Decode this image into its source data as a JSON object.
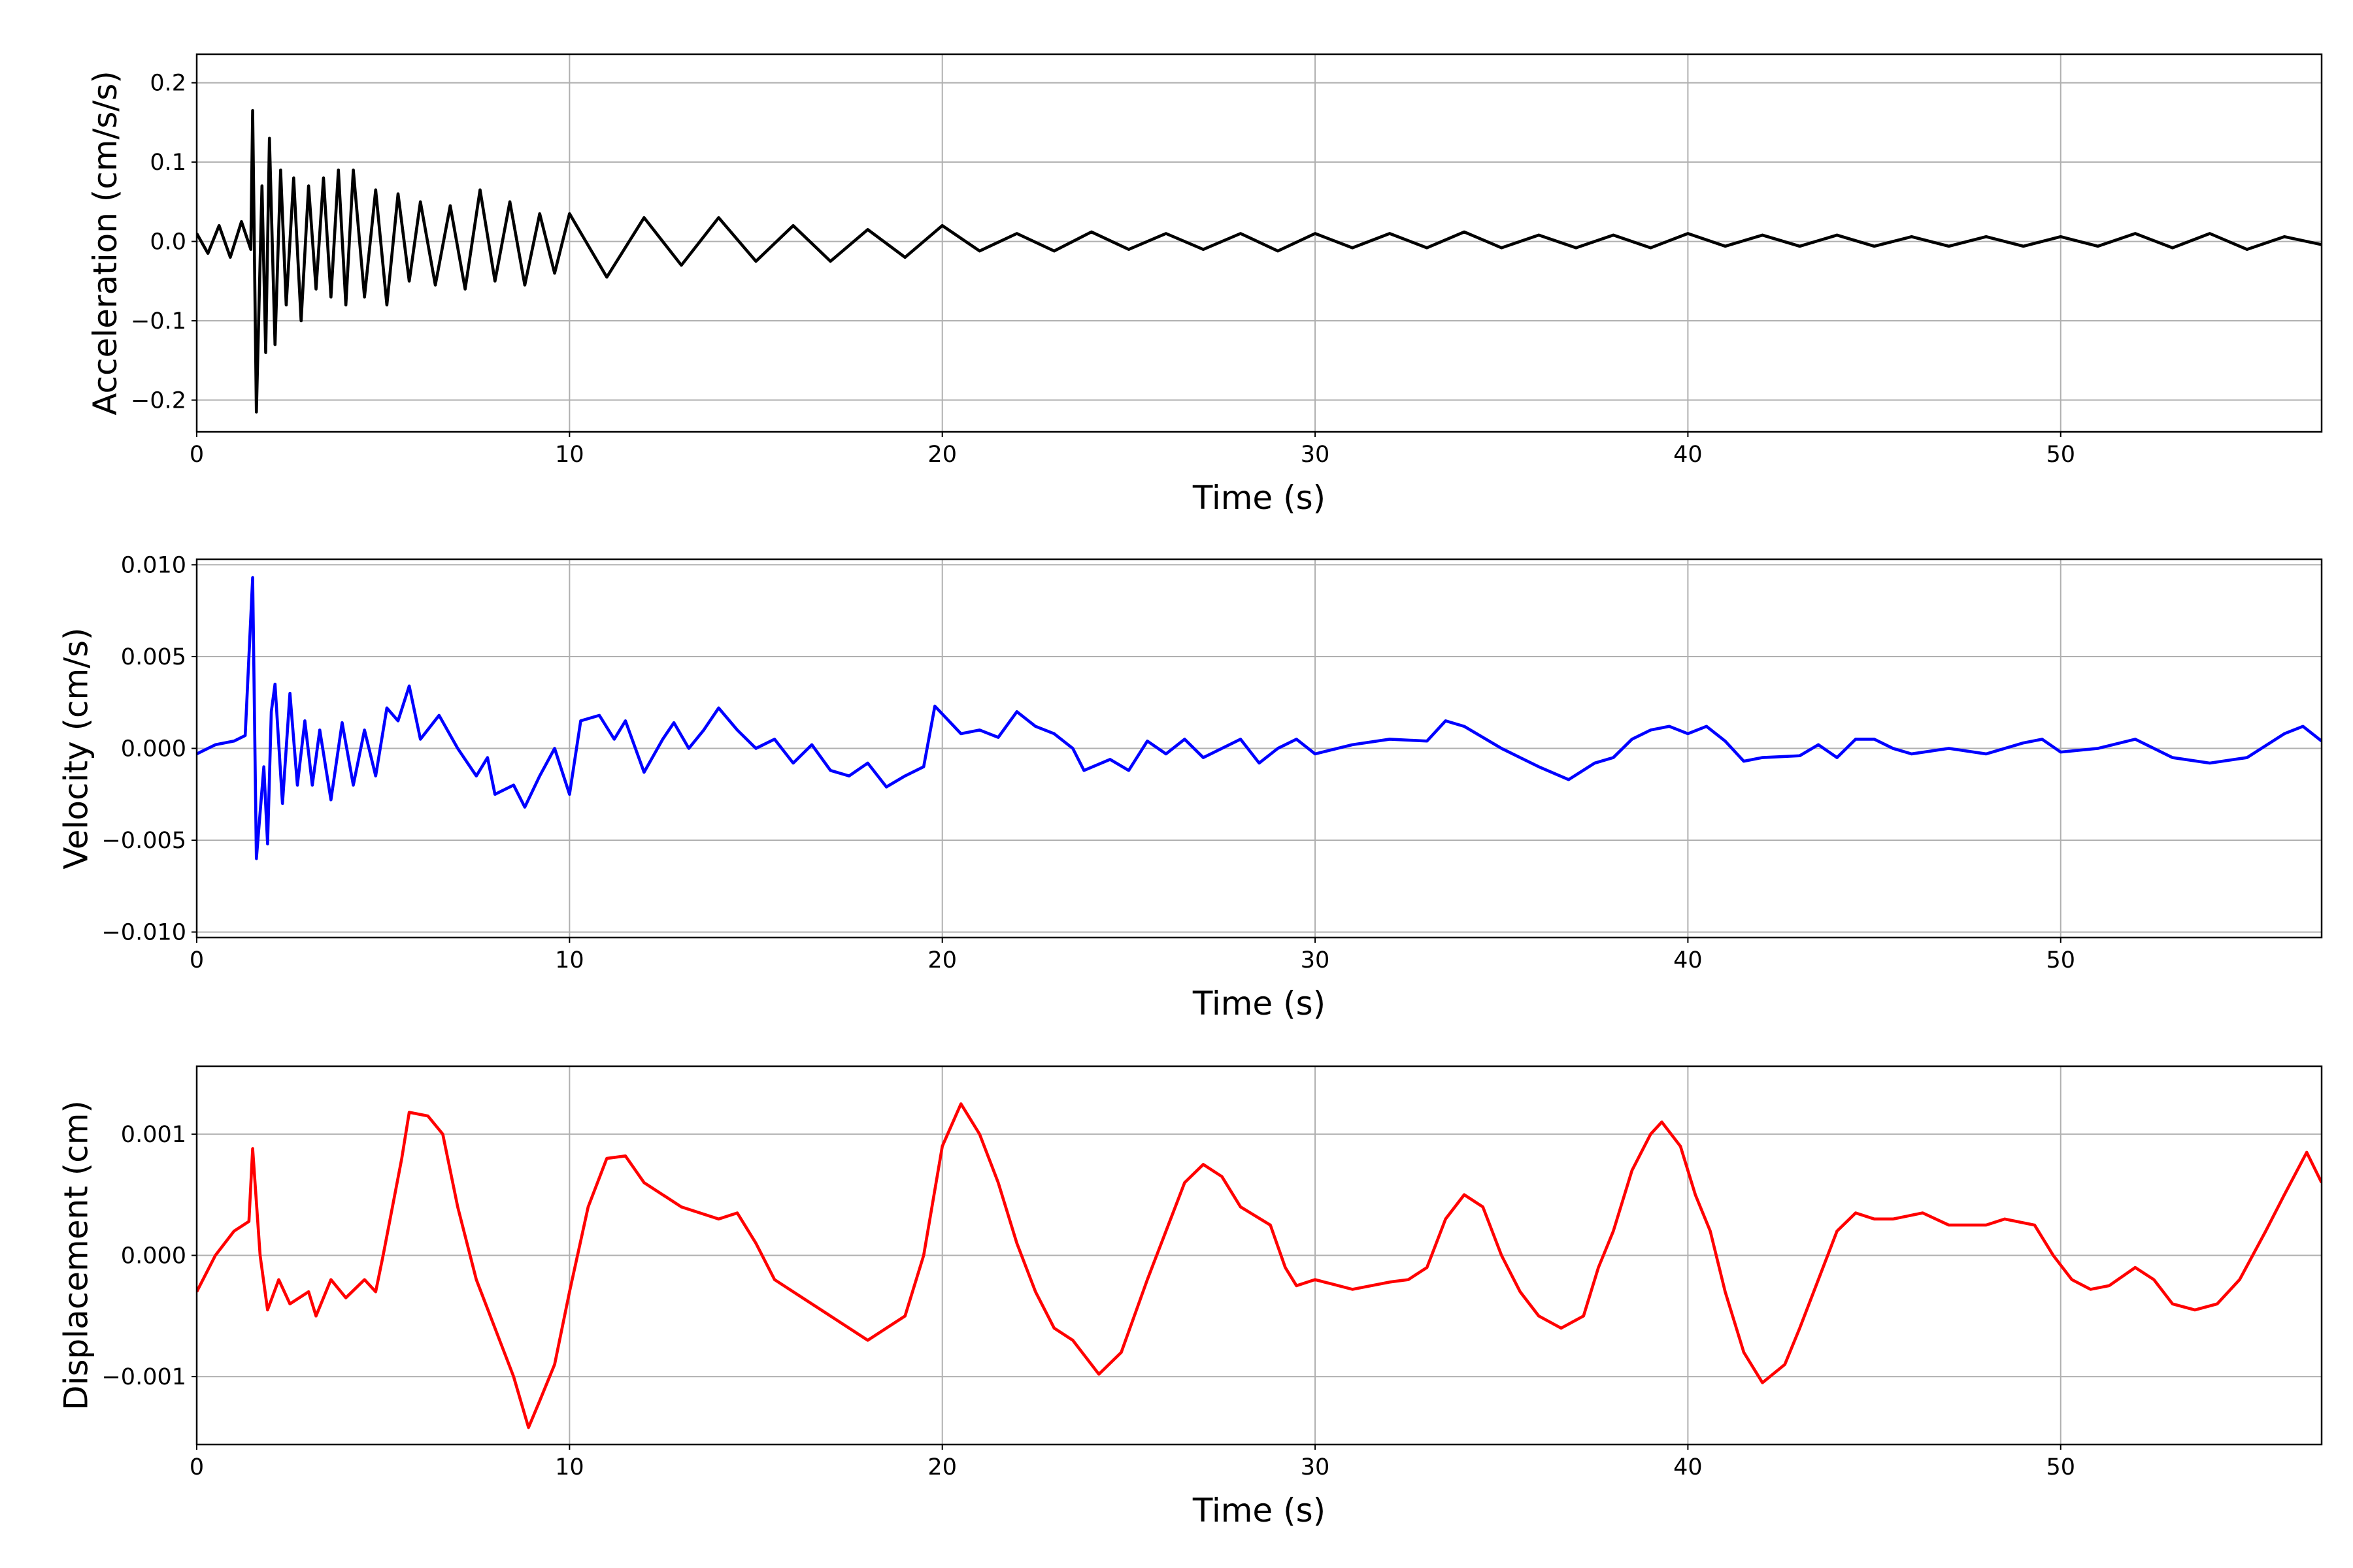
{
  "chart_data": [
    {
      "type": "line",
      "xlabel": "Time (s)",
      "ylabel": "Acceleration (cm/s/s)",
      "color": "#000000",
      "grid": true,
      "xlim": [
        0,
        57
      ],
      "ylim": [
        -0.24,
        0.236
      ],
      "xticks": [
        0,
        10,
        20,
        30,
        40,
        50
      ],
      "yticks": [
        {
          "value": -0.2,
          "label": "−0.2"
        },
        {
          "value": -0.1,
          "label": "−0.1"
        },
        {
          "value": 0,
          "label": "0.0"
        },
        {
          "value": 0.1,
          "label": "0.1"
        },
        {
          "value": 0.2,
          "label": "0.2"
        }
      ],
      "x": [
        0,
        0.3,
        0.6,
        0.9,
        1.2,
        1.45,
        1.5,
        1.6,
        1.75,
        1.85,
        1.95,
        2.1,
        2.25,
        2.4,
        2.6,
        2.8,
        3.0,
        3.2,
        3.4,
        3.6,
        3.8,
        4.0,
        4.2,
        4.5,
        4.8,
        5.1,
        5.4,
        5.7,
        6.0,
        6.4,
        6.8,
        7.2,
        7.6,
        8.0,
        8.4,
        8.8,
        9.2,
        9.6,
        10.0,
        11,
        12,
        13,
        14,
        15,
        16,
        17,
        18,
        19,
        20,
        21,
        22,
        23,
        24,
        25,
        26,
        27,
        28,
        29,
        30,
        31,
        32,
        33,
        34,
        35,
        36,
        37,
        38,
        39,
        40,
        41,
        42,
        43,
        44,
        45,
        46,
        47,
        48,
        49,
        50,
        51,
        52,
        53,
        54,
        55,
        56,
        57
      ],
      "values": [
        0.01,
        -0.015,
        0.02,
        -0.02,
        0.025,
        -0.01,
        0.165,
        -0.215,
        0.07,
        -0.14,
        0.13,
        -0.13,
        0.09,
        -0.08,
        0.08,
        -0.1,
        0.07,
        -0.06,
        0.08,
        -0.07,
        0.09,
        -0.08,
        0.09,
        -0.07,
        0.065,
        -0.08,
        0.06,
        -0.05,
        0.05,
        -0.055,
        0.045,
        -0.06,
        0.065,
        -0.05,
        0.05,
        -0.055,
        0.035,
        -0.04,
        0.035,
        -0.045,
        0.03,
        -0.03,
        0.03,
        -0.025,
        0.02,
        -0.025,
        0.015,
        -0.02,
        0.02,
        -0.012,
        0.01,
        -0.012,
        0.012,
        -0.01,
        0.01,
        -0.01,
        0.01,
        -0.012,
        0.01,
        -0.008,
        0.01,
        -0.008,
        0.012,
        -0.008,
        0.008,
        -0.008,
        0.008,
        -0.008,
        0.01,
        -0.006,
        0.008,
        -0.006,
        0.008,
        -0.006,
        0.006,
        -0.006,
        0.006,
        -0.006,
        0.006,
        -0.006,
        0.01,
        -0.008,
        0.01,
        -0.01,
        0.006,
        -0.004
      ]
    },
    {
      "type": "line",
      "xlabel": "Time (s)",
      "ylabel": "Velocity (cm/s)",
      "color": "#0000ff",
      "grid": true,
      "xlim": [
        0,
        57
      ],
      "ylim": [
        -0.0103,
        0.0103
      ],
      "xticks": [
        0,
        10,
        20,
        30,
        40,
        50
      ],
      "yticks": [
        {
          "value": -0.01,
          "label": "−0.010"
        },
        {
          "value": -0.005,
          "label": "−0.005"
        },
        {
          "value": 0,
          "label": "0.000"
        },
        {
          "value": 0.005,
          "label": "0.005"
        },
        {
          "value": 0.01,
          "label": "0.010"
        }
      ],
      "x": [
        0,
        0.5,
        1.0,
        1.3,
        1.5,
        1.6,
        1.8,
        1.9,
        2.0,
        2.1,
        2.3,
        2.5,
        2.7,
        2.9,
        3.1,
        3.3,
        3.6,
        3.9,
        4.2,
        4.5,
        4.8,
        5.1,
        5.4,
        5.7,
        6.0,
        6.5,
        7.0,
        7.5,
        7.8,
        8.0,
        8.5,
        8.8,
        9.2,
        9.6,
        10.0,
        10.3,
        10.8,
        11.2,
        11.5,
        12.0,
        12.5,
        12.8,
        13.2,
        13.6,
        14.0,
        14.5,
        15.0,
        15.5,
        16.0,
        16.5,
        17.0,
        17.5,
        18.0,
        18.5,
        19.0,
        19.5,
        19.8,
        20.5,
        21.0,
        21.5,
        22.0,
        22.5,
        23.0,
        23.5,
        23.8,
        24.5,
        25.0,
        25.5,
        26.0,
        26.5,
        27.0,
        28.0,
        28.5,
        29.0,
        29.5,
        30.0,
        31.0,
        32.0,
        33.0,
        33.5,
        34.0,
        35.0,
        35.5,
        36.0,
        36.8,
        37.5,
        38.0,
        38.5,
        39.0,
        39.5,
        40.0,
        40.5,
        41.0,
        41.5,
        42.0,
        43.0,
        43.5,
        44.0,
        44.5,
        45.0,
        45.5,
        46.0,
        47.0,
        48.0,
        49.0,
        49.5,
        50.0,
        51.0,
        52.0,
        53.0,
        54.0,
        55.0,
        56.0,
        56.5,
        57.0
      ],
      "values": [
        -0.0003,
        0.0002,
        0.0004,
        0.0007,
        0.0093,
        -0.006,
        -0.001,
        -0.0052,
        0.002,
        0.0035,
        -0.003,
        0.003,
        -0.002,
        0.0015,
        -0.002,
        0.001,
        -0.0028,
        0.0014,
        -0.002,
        0.001,
        -0.0015,
        0.0022,
        0.0015,
        0.0034,
        0.0005,
        0.0018,
        0.0,
        -0.0015,
        -0.0005,
        -0.0025,
        -0.002,
        -0.0032,
        -0.0015,
        0.0,
        -0.0025,
        0.0015,
        0.0018,
        0.0005,
        0.0015,
        -0.0013,
        0.0005,
        0.0014,
        0.0,
        0.001,
        0.0022,
        0.001,
        0.0,
        0.0005,
        -0.0008,
        0.0002,
        -0.0012,
        -0.0015,
        -0.0008,
        -0.0021,
        -0.0015,
        -0.001,
        0.0023,
        0.0008,
        0.001,
        0.0006,
        0.002,
        0.0012,
        0.0008,
        0.0,
        -0.0012,
        -0.0006,
        -0.0012,
        0.0004,
        -0.0003,
        0.0005,
        -0.0005,
        0.0005,
        -0.0008,
        0.0,
        0.0005,
        -0.0003,
        0.0002,
        0.0005,
        0.0004,
        0.0015,
        0.0012,
        0.0,
        -0.0005,
        -0.001,
        -0.0017,
        -0.0008,
        -0.0005,
        0.0005,
        0.001,
        0.0012,
        0.0008,
        0.0012,
        0.0004,
        -0.0007,
        -0.0005,
        -0.0004,
        0.0002,
        -0.0005,
        0.0005,
        0.0005,
        0.0,
        -0.0003,
        0.0,
        -0.0003,
        0.0003,
        0.0005,
        -0.0002,
        0.0,
        0.0005,
        -0.0005,
        -0.0008,
        -0.0005,
        0.0008,
        0.0012,
        0.0004
      ]
    },
    {
      "type": "line",
      "xlabel": "Time (s)",
      "ylabel": "Displacement (cm)",
      "color": "#ff0000",
      "grid": true,
      "xlim": [
        0,
        57
      ],
      "ylim": [
        -0.00156,
        0.00156
      ],
      "xticks": [
        0,
        10,
        20,
        30,
        40,
        50
      ],
      "yticks": [
        {
          "value": -0.001,
          "label": "−0.001"
        },
        {
          "value": 0,
          "label": "0.000"
        },
        {
          "value": 0.001,
          "label": "0.001"
        }
      ],
      "x": [
        0,
        0.5,
        1.0,
        1.4,
        1.5,
        1.7,
        1.9,
        2.2,
        2.5,
        3.0,
        3.2,
        3.6,
        4.0,
        4.5,
        4.8,
        5.0,
        5.5,
        5.7,
        6.2,
        6.6,
        7.0,
        7.5,
        8.0,
        8.5,
        8.9,
        9.2,
        9.6,
        10.0,
        10.5,
        11.0,
        11.5,
        12.0,
        13.0,
        14.0,
        14.5,
        15.0,
        15.5,
        16.0,
        17.0,
        18.0,
        19.0,
        19.5,
        20.0,
        20.5,
        21.0,
        21.5,
        22.0,
        22.5,
        23.0,
        23.5,
        24.2,
        24.8,
        25.5,
        26.0,
        26.5,
        27.0,
        27.5,
        28.0,
        28.8,
        29.2,
        29.5,
        30.0,
        31.0,
        32.0,
        32.5,
        33.0,
        33.5,
        34.0,
        34.5,
        35.0,
        35.5,
        36.0,
        36.6,
        37.2,
        37.6,
        38.0,
        38.5,
        39.0,
        39.3,
        39.8,
        40.2,
        40.6,
        41.0,
        41.5,
        42.0,
        42.6,
        43.0,
        43.5,
        44.0,
        44.5,
        45.0,
        45.5,
        46.3,
        47.0,
        48.0,
        48.5,
        49.3,
        49.8,
        50.3,
        50.8,
        51.3,
        52.0,
        52.5,
        53.0,
        53.6,
        54.2,
        54.8,
        55.5,
        56.0,
        56.6,
        57.0
      ],
      "values": [
        -0.0003,
        0.0,
        0.0002,
        0.00028,
        0.00088,
        0.0,
        -0.00045,
        -0.0002,
        -0.0004,
        -0.0003,
        -0.0005,
        -0.0002,
        -0.00035,
        -0.0002,
        -0.0003,
        0.0,
        0.0008,
        0.00118,
        0.00115,
        0.001,
        0.0004,
        -0.0002,
        -0.0006,
        -0.001,
        -0.00142,
        -0.0012,
        -0.0009,
        -0.0003,
        0.0004,
        0.0008,
        0.00082,
        0.0006,
        0.0004,
        0.0003,
        0.00035,
        0.0001,
        -0.0002,
        -0.0003,
        -0.0005,
        -0.0007,
        -0.0005,
        0.0,
        0.0009,
        0.00125,
        0.001,
        0.0006,
        0.0001,
        -0.0003,
        -0.0006,
        -0.0007,
        -0.00098,
        -0.0008,
        -0.0002,
        0.0002,
        0.0006,
        0.00075,
        0.00065,
        0.0004,
        0.00025,
        -0.0001,
        -0.00025,
        -0.0002,
        -0.00028,
        -0.00022,
        -0.0002,
        -0.0001,
        0.0003,
        0.0005,
        0.0004,
        0.0,
        -0.0003,
        -0.0005,
        -0.0006,
        -0.0005,
        -0.0001,
        0.0002,
        0.0007,
        0.001,
        0.0011,
        0.0009,
        0.0005,
        0.0002,
        -0.0003,
        -0.0008,
        -0.00105,
        -0.0009,
        -0.0006,
        -0.0002,
        0.0002,
        0.00035,
        0.0003,
        0.0003,
        0.00035,
        0.00025,
        0.00025,
        0.0003,
        0.00025,
        0.0,
        -0.0002,
        -0.00028,
        -0.00025,
        -0.0001,
        -0.0002,
        -0.0004,
        -0.00045,
        -0.0004,
        -0.0002,
        0.0002,
        0.0005,
        0.00085,
        0.0006
      ]
    }
  ]
}
